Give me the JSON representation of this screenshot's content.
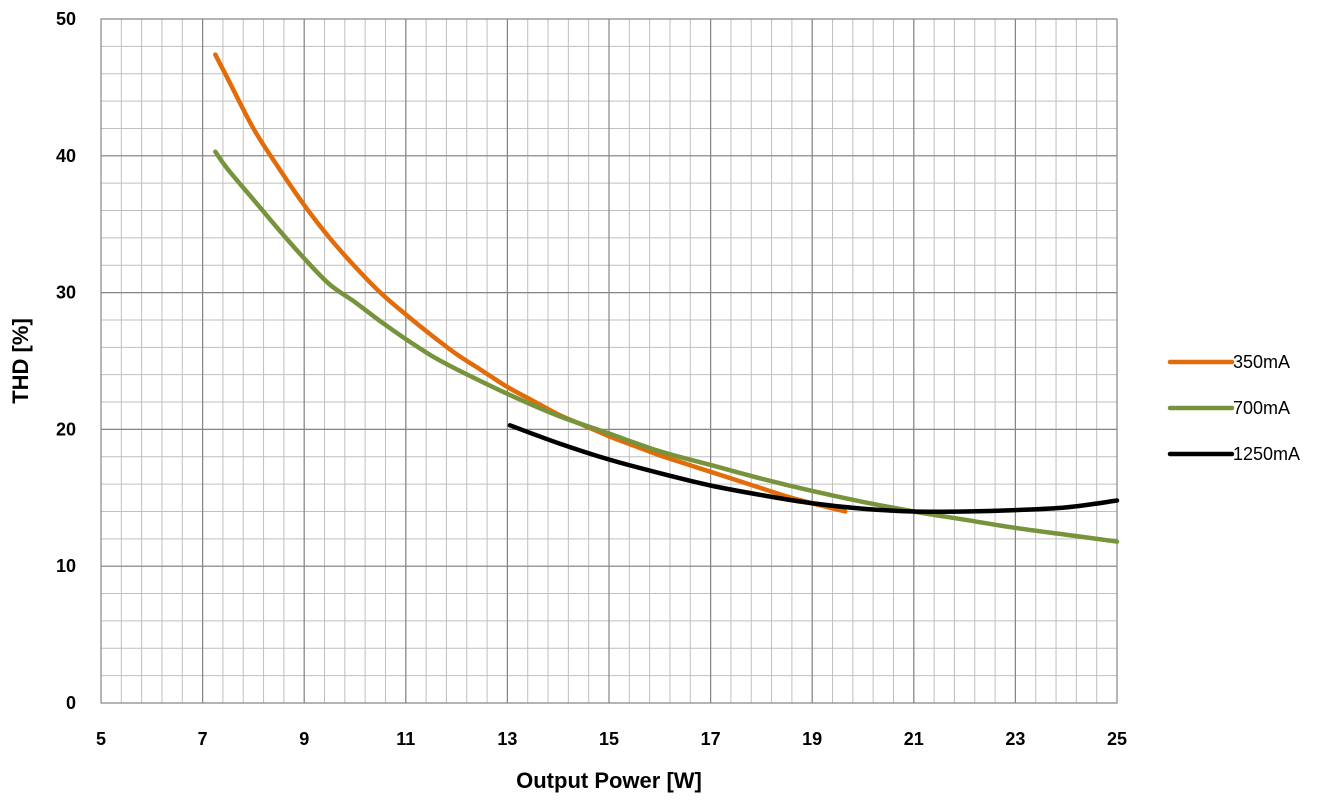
{
  "chart_data": {
    "type": "line",
    "xlabel": "Output Power [W]",
    "ylabel": "THD [%]",
    "xlim": [
      5,
      25
    ],
    "ylim": [
      0,
      50
    ],
    "x_ticks": [
      5,
      7,
      9,
      11,
      13,
      15,
      17,
      19,
      21,
      23,
      25
    ],
    "y_ticks": [
      0,
      10,
      20,
      30,
      40,
      50
    ],
    "minor_x_step": 0.4,
    "minor_y_step": 2,
    "grid": true,
    "legend_position": "right",
    "series": [
      {
        "name": "350mA",
        "color": "#E36C0A",
        "x": [
          7.25,
          7.5,
          8,
          8.5,
          9,
          9.5,
          10,
          10.5,
          11,
          11.5,
          12,
          12.5,
          13,
          13.5,
          14,
          14.5,
          15,
          15.5,
          16,
          16.5,
          17,
          17.5,
          18,
          18.5,
          19,
          19.65
        ],
        "y": [
          47.4,
          45.6,
          42.0,
          39.1,
          36.4,
          34.0,
          31.9,
          30.0,
          28.4,
          26.9,
          25.5,
          24.3,
          23.1,
          22.1,
          21.1,
          20.3,
          19.5,
          18.8,
          18.1,
          17.5,
          16.9,
          16.3,
          15.7,
          15.1,
          14.6,
          14.0
        ]
      },
      {
        "name": "700mA",
        "color": "#77933C",
        "x": [
          7.25,
          7.5,
          8,
          8.5,
          9,
          9.5,
          10,
          10.5,
          11,
          11.5,
          12,
          13,
          14,
          15,
          16,
          17,
          18,
          19,
          20,
          21,
          22,
          23,
          24,
          25
        ],
        "y": [
          40.3,
          39.0,
          36.8,
          34.6,
          32.5,
          30.6,
          29.3,
          27.9,
          26.6,
          25.4,
          24.4,
          22.6,
          21.0,
          19.7,
          18.4,
          17.4,
          16.4,
          15.5,
          14.7,
          14.0,
          13.4,
          12.8,
          12.3,
          11.8
        ]
      },
      {
        "name": "1250mA",
        "color": "#000000",
        "x": [
          13.05,
          14,
          15,
          16,
          17,
          18,
          19,
          20,
          21,
          22,
          23,
          24,
          25
        ],
        "y": [
          20.3,
          19.0,
          17.8,
          16.8,
          15.9,
          15.2,
          14.6,
          14.2,
          14.0,
          14.0,
          14.1,
          14.3,
          14.8
        ]
      }
    ]
  }
}
